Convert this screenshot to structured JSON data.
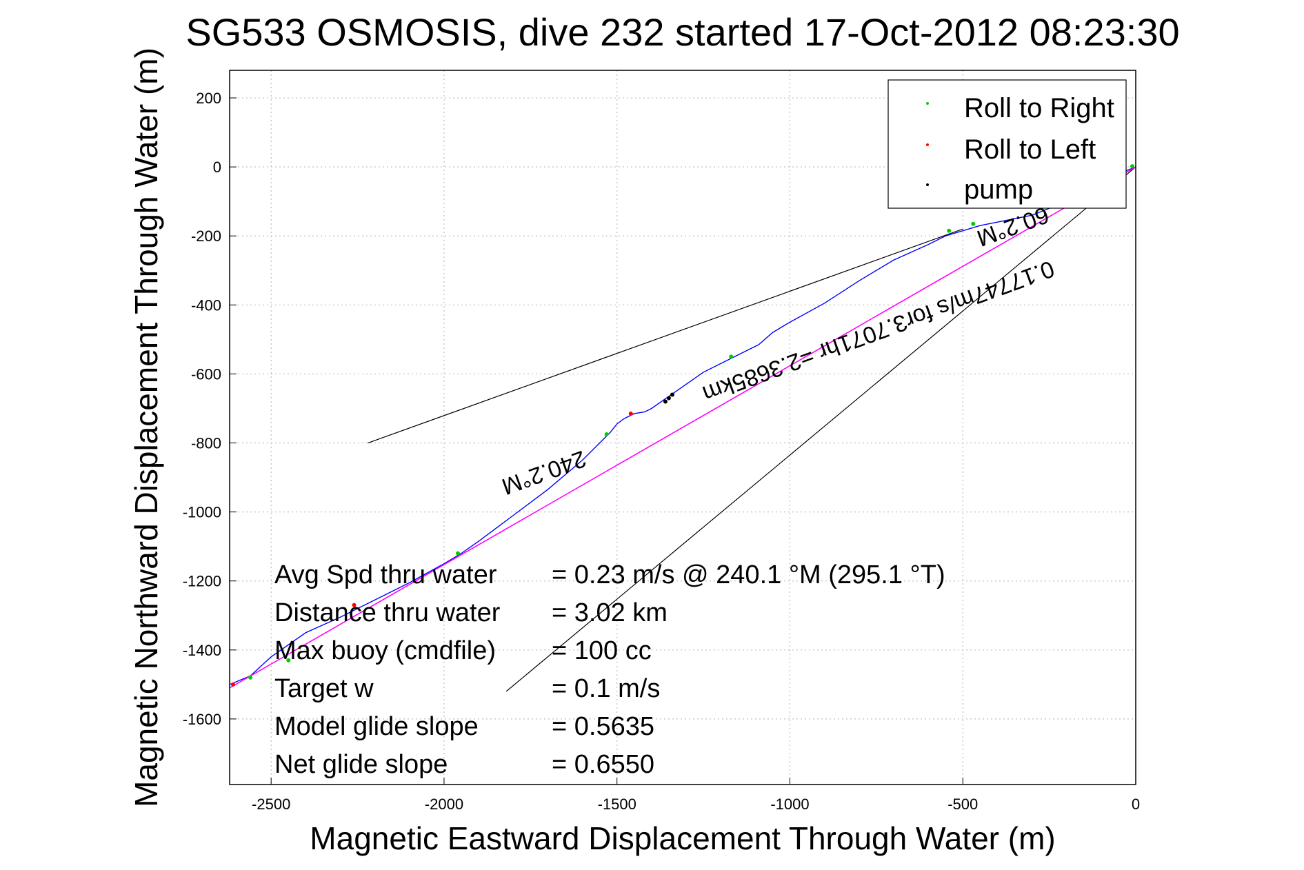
{
  "chart_data": {
    "type": "line",
    "title": "SG533 OSMOSIS, dive 232 started 17-Oct-2012 08:23:30",
    "xlabel": "Magnetic Eastward Displacement Through Water (m)",
    "ylabel": "Magnetic Northward Displacement Through Water (m)",
    "xlim": [
      -2620,
      0
    ],
    "ylim": [
      -1790,
      280
    ],
    "xticks": [
      -2500,
      -2000,
      -1500,
      -1000,
      -500,
      0
    ],
    "yticks": [
      200,
      0,
      -200,
      -400,
      -600,
      -800,
      -1000,
      -1200,
      -1400,
      -1600
    ],
    "grid": true,
    "legend": {
      "placement": "top-right",
      "entries": [
        {
          "label": "Roll to Right",
          "color": "#00cc00"
        },
        {
          "label": "Roll to Left",
          "color": "#ff0000"
        },
        {
          "label": "pump",
          "color": "#000000"
        }
      ]
    },
    "series": [
      {
        "color": "#0000ff",
        "x": [
          0,
          -50,
          -100,
          -150,
          -200,
          -300,
          -400,
          -450,
          -500,
          -550,
          -600,
          -700,
          -800,
          -900,
          -1000,
          -1050,
          -1090,
          -1110,
          -1150,
          -1200,
          -1250,
          -1300,
          -1350,
          -1400,
          -1420,
          -1450,
          -1480,
          -1500,
          -1520,
          -1550,
          -1600,
          -1700,
          -1800,
          -1900,
          -1950,
          -2000,
          -2100,
          -2200,
          -2300,
          -2400,
          -2500,
          -2560,
          -2620
        ],
        "y": [
          0,
          -20,
          -45,
          -70,
          -100,
          -140,
          -160,
          -170,
          -185,
          -200,
          -225,
          -270,
          -330,
          -395,
          -450,
          -480,
          -515,
          -525,
          -545,
          -570,
          -595,
          -630,
          -665,
          -700,
          -710,
          -715,
          -730,
          -745,
          -770,
          -800,
          -850,
          -935,
          -1010,
          -1085,
          -1120,
          -1150,
          -1205,
          -1255,
          -1305,
          -1350,
          -1420,
          -1475,
          -1500
        ]
      },
      {
        "color": "#ff00ff",
        "x": [
          0,
          -2620
        ],
        "y": [
          0,
          -1510
        ]
      }
    ],
    "guides": [
      {
        "x": [
          -2220,
          -500
        ],
        "y": [
          -800,
          -180
        ]
      },
      {
        "x": [
          -1820,
          0
        ],
        "y": [
          -1520,
          0
        ]
      }
    ],
    "markers": [
      {
        "type": "Roll to Right",
        "color": "#00cc00",
        "points": [
          [
            -1530,
            -775
          ],
          [
            -1170,
            -550
          ],
          [
            -540,
            -185
          ],
          [
            -470,
            -165
          ],
          [
            -1960,
            -1120
          ],
          [
            -2450,
            -1430
          ],
          [
            -2560,
            -1480
          ],
          [
            -10,
            2
          ]
        ]
      },
      {
        "type": "Roll to Left",
        "color": "#ff0000",
        "points": [
          [
            -1460,
            -715
          ],
          [
            -2260,
            -1270
          ],
          [
            -2610,
            -1500
          ]
        ]
      },
      {
        "type": "pump",
        "color": "#000000",
        "points": [
          [
            -1350,
            -670
          ],
          [
            -1340,
            -660
          ],
          [
            -1360,
            -680
          ]
        ]
      }
    ],
    "annotations": [
      {
        "text": "240.2°M",
        "rotate": 160
      },
      {
        "text": "0.17747m/s for3.7071hr =2.3685km",
        "rotate": 160
      },
      {
        "text": "60.2°M",
        "rotate": 160
      }
    ],
    "stats": [
      {
        "label": "Avg Spd thru water",
        "value": "=  0.23 m/s @ 240.1 °M (295.1 °T)"
      },
      {
        "label": "Distance thru water",
        "value": "=  3.02 km"
      },
      {
        "label": "Max buoy (cmdfile)",
        "value": "= 100 cc"
      },
      {
        "label": "Target w",
        "value": "= 0.1 m/s"
      },
      {
        "label": "Model glide slope",
        "value": "= 0.5635"
      },
      {
        "label": "Net glide slope",
        "value": "= 0.6550"
      }
    ]
  }
}
